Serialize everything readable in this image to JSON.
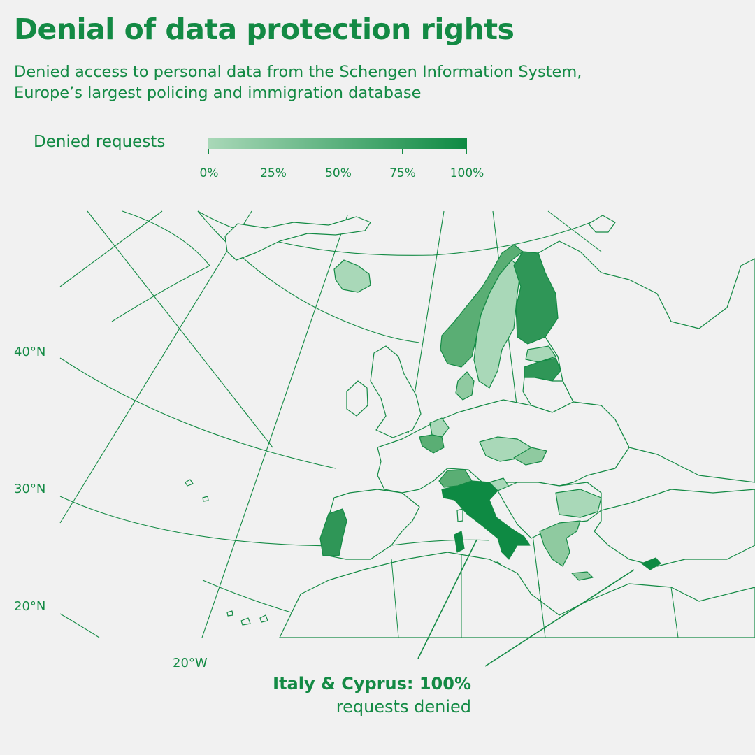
{
  "title": "Denial of data protection rights",
  "subtitle": "Denied access to personal data from the Schengen Information System, Europe’s largest policing and immigration database",
  "legend": {
    "label": "Denied requests",
    "ticks": [
      "0%",
      "25%",
      "50%",
      "75%",
      "100%"
    ],
    "color_low": "#a9d8b8",
    "color_high": "#0e8a43"
  },
  "axis_labels": {
    "lat_40": "40°N",
    "lat_30": "30°N",
    "lat_20": "20°N",
    "lon_20w": "20°W"
  },
  "annotation": {
    "line1": "Italy & Cyprus: 100%",
    "line2": "requests denied"
  },
  "colors": {
    "text": "#138a44",
    "background": "#f1f1f1",
    "shade_light": "#a9d8b8",
    "shade_mid_light": "#8fcaa0",
    "shade_mid": "#5aae74",
    "shade_high": "#2f9657",
    "shade_max": "#0e8a43"
  },
  "countries": [
    {
      "name": "Iceland",
      "shade": "shade_light"
    },
    {
      "name": "Norway",
      "shade": "shade_mid"
    },
    {
      "name": "Sweden",
      "shade": "shade_light"
    },
    {
      "name": "Finland",
      "shade": "shade_high"
    },
    {
      "name": "Estonia",
      "shade": "shade_light"
    },
    {
      "name": "Latvia",
      "shade": "shade_high"
    },
    {
      "name": "Denmark",
      "shade": "shade_mid_light"
    },
    {
      "name": "Netherlands",
      "shade": "shade_light"
    },
    {
      "name": "Belgium",
      "shade": "shade_mid"
    },
    {
      "name": "Czechia",
      "shade": "shade_light"
    },
    {
      "name": "Slovakia",
      "shade": "shade_mid_light"
    },
    {
      "name": "Switzerland",
      "shade": "shade_mid"
    },
    {
      "name": "Slovenia",
      "shade": "shade_light"
    },
    {
      "name": "Italy",
      "shade": "shade_max"
    },
    {
      "name": "Portugal",
      "shade": "shade_high"
    },
    {
      "name": "Bulgaria",
      "shade": "shade_light"
    },
    {
      "name": "Greece",
      "shade": "shade_mid_light"
    },
    {
      "name": "Cyprus",
      "shade": "shade_max"
    }
  ]
}
